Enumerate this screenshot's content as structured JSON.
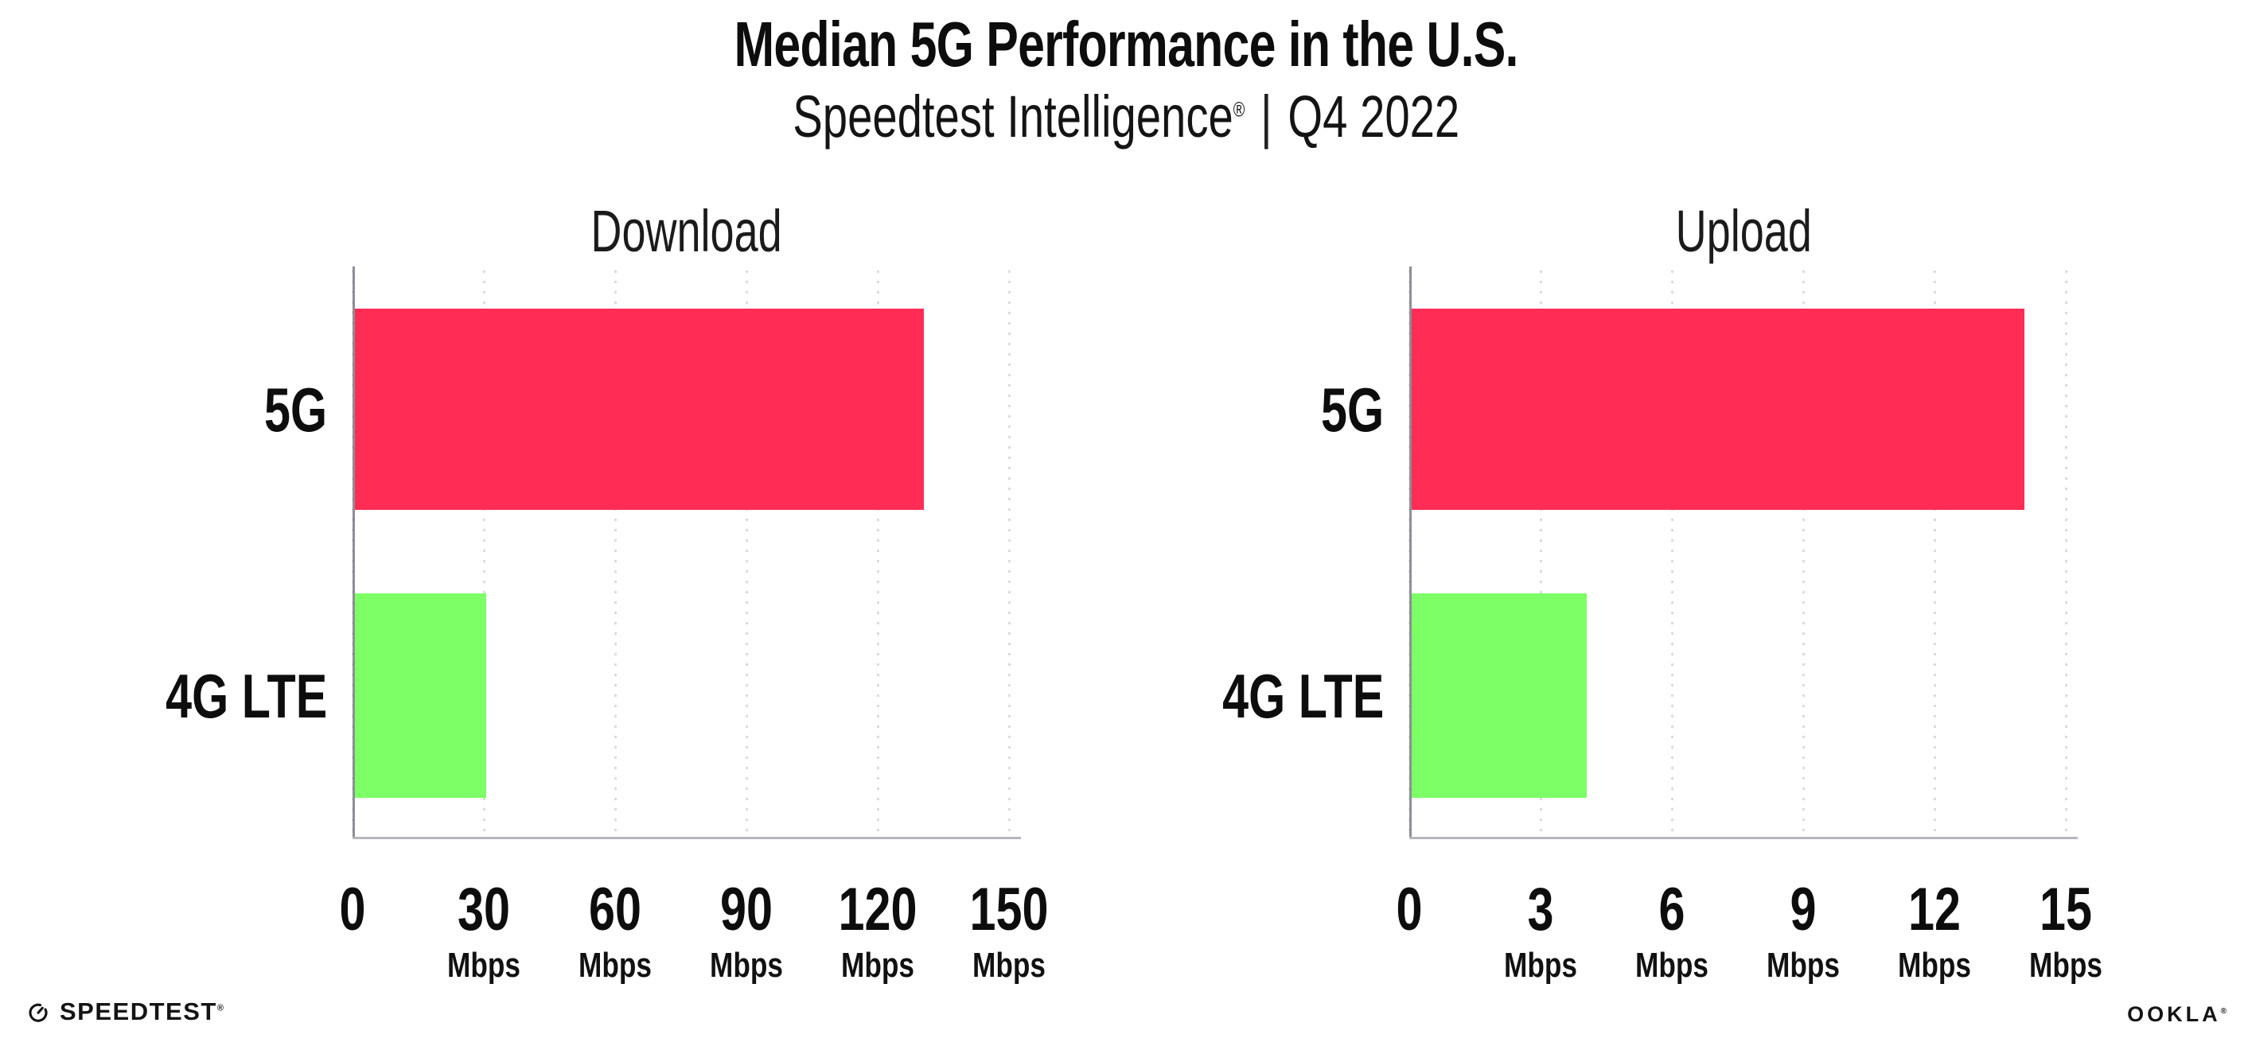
{
  "header": {
    "title": "Median 5G Performance in the U.S.",
    "subtitle_brand": "Speedtest Intelligence",
    "subtitle_reg": "®",
    "subtitle_sep": "|",
    "subtitle_period": "Q4 2022"
  },
  "chart_data": [
    {
      "type": "bar",
      "orientation": "horizontal",
      "title": "Download",
      "categories": [
        "5G",
        "4G LTE"
      ],
      "values": [
        130,
        30
      ],
      "unit": "Mbps",
      "xlim": [
        0,
        150
      ],
      "xticks": [
        0,
        30,
        60,
        90,
        120,
        150
      ],
      "bar_colors": [
        "#ff2d55",
        "#7dff66"
      ],
      "grid": "dotted-vertical",
      "legend": "none"
    },
    {
      "type": "bar",
      "orientation": "horizontal",
      "title": "Upload",
      "categories": [
        "5G",
        "4G LTE"
      ],
      "values": [
        14,
        4
      ],
      "unit": "Mbps",
      "xlim": [
        0,
        15
      ],
      "xticks": [
        0,
        3,
        6,
        9,
        12,
        15
      ],
      "bar_colors": [
        "#ff2d55",
        "#7dff66"
      ],
      "grid": "dotted-vertical",
      "legend": "none"
    }
  ],
  "footer": {
    "speedtest_label": "SPEEDTEST",
    "speedtest_reg": "®",
    "ookla_label": "OOKLA",
    "ookla_reg": "®"
  },
  "colors": {
    "bar_5g": "#ff2d55",
    "bar_4g_lte": "#7dff66",
    "gridline": "#d9d9e3",
    "y_axis": "#8e8e96",
    "x_axis": "#b6b6bc",
    "text": "#0d0d0d"
  }
}
